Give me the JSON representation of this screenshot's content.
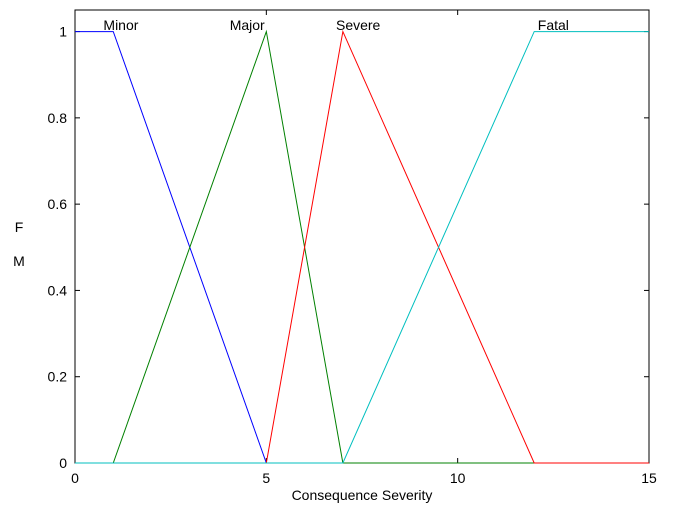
{
  "chart_data": {
    "type": "line",
    "title": "",
    "xlabel": "Consequence Severity",
    "ylabel": "F\nM",
    "ylabel_lines": [
      "F",
      "M"
    ],
    "xlim": [
      0,
      15
    ],
    "ylim": [
      0,
      1.05
    ],
    "x_ticks": [
      0,
      5,
      10,
      15
    ],
    "y_ticks": [
      0,
      0.2,
      0.4,
      0.6,
      0.8,
      1
    ],
    "x_tick_labels": [
      "0",
      "5",
      "10",
      "15"
    ],
    "y_tick_labels": [
      "0",
      "0.2",
      "0.4",
      "0.6",
      "0.8",
      "1"
    ],
    "grid": false,
    "series": [
      {
        "name": "Minor",
        "color": "#0000ff",
        "label_x": 1.2,
        "points": [
          [
            0,
            1
          ],
          [
            1,
            1
          ],
          [
            5,
            0
          ],
          [
            15,
            0
          ]
        ]
      },
      {
        "name": "Major",
        "color": "#008000",
        "label_x": 4.5,
        "points": [
          [
            0,
            0
          ],
          [
            1,
            0
          ],
          [
            5,
            1
          ],
          [
            7,
            0
          ],
          [
            15,
            0
          ]
        ]
      },
      {
        "name": "Severe",
        "color": "#ff0000",
        "label_x": 7.4,
        "points": [
          [
            0,
            0
          ],
          [
            5,
            0
          ],
          [
            7,
            1
          ],
          [
            12,
            0
          ],
          [
            15,
            0
          ]
        ]
      },
      {
        "name": "Fatal",
        "color": "#00bfbf",
        "label_x": 12.5,
        "points": [
          [
            0,
            0
          ],
          [
            7,
            0
          ],
          [
            12,
            1
          ],
          [
            15,
            1
          ]
        ]
      }
    ]
  }
}
